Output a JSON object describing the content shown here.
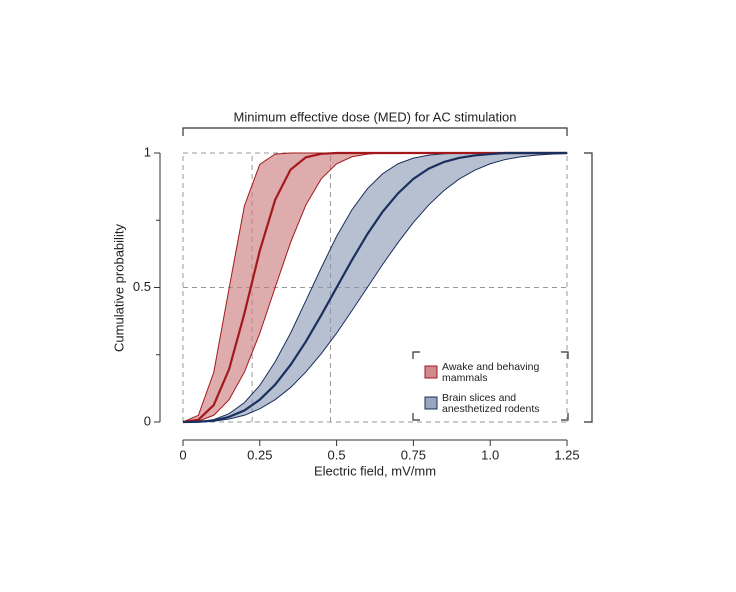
{
  "chart_data": {
    "type": "line",
    "title": "Minimum effective dose (MED) for AC stimulation",
    "x_label": "Electric field, mV/mm",
    "y_label": "Cumulative probability",
    "x": [
      0,
      0.05,
      0.1,
      0.15,
      0.2,
      0.25,
      0.3,
      0.35,
      0.4,
      0.45,
      0.5,
      0.55,
      0.6,
      0.65,
      0.7,
      0.75,
      0.8,
      0.85,
      0.9,
      0.95,
      1.0,
      1.05,
      1.1,
      1.15,
      1.2,
      1.25
    ],
    "series": [
      {
        "name": "Awake and behaving mammals",
        "color": "#a3191b",
        "band_color": "#c97577",
        "values": [
          0,
          0.008,
          0.063,
          0.196,
          0.404,
          0.637,
          0.826,
          0.938,
          0.984,
          0.997,
          1,
          1,
          1,
          1,
          1,
          1,
          1,
          1,
          1,
          1,
          1,
          1,
          1,
          1,
          1,
          1
        ],
        "upper": [
          0,
          0.025,
          0.184,
          0.497,
          0.804,
          0.958,
          0.996,
          1,
          1,
          1,
          1,
          1,
          1,
          1,
          1,
          1,
          1,
          1,
          1,
          1,
          1,
          1,
          1,
          1,
          1,
          1
        ],
        "lower": [
          0,
          0.003,
          0.025,
          0.083,
          0.186,
          0.33,
          0.5,
          0.667,
          0.807,
          0.904,
          0.96,
          0.986,
          0.996,
          1,
          1,
          1,
          1,
          1,
          1,
          1,
          1,
          1,
          1,
          1,
          1,
          1
        ]
      },
      {
        "name": "Brain slices and anesthetized rodents",
        "color": "#1a2f5c",
        "band_color": "#8696b3",
        "values": [
          0,
          0.001,
          0.005,
          0.019,
          0.043,
          0.083,
          0.139,
          0.212,
          0.299,
          0.397,
          0.5,
          0.602,
          0.698,
          0.782,
          0.85,
          0.904,
          0.942,
          0.967,
          0.982,
          0.991,
          0.996,
          1,
          1,
          1,
          1,
          1
        ],
        "upper": [
          0,
          0.001,
          0.009,
          0.031,
          0.072,
          0.136,
          0.224,
          0.33,
          0.451,
          0.573,
          0.69,
          0.789,
          0.867,
          0.923,
          0.96,
          0.981,
          0.992,
          0.997,
          1,
          1,
          1,
          1,
          1,
          1,
          1,
          1
        ],
        "lower": [
          0,
          0,
          0.003,
          0.011,
          0.025,
          0.049,
          0.083,
          0.128,
          0.186,
          0.254,
          0.33,
          0.414,
          0.5,
          0.586,
          0.667,
          0.742,
          0.807,
          0.861,
          0.904,
          0.936,
          0.96,
          0.976,
          0.986,
          0.992,
          0.996,
          0.998
        ]
      }
    ],
    "xlim": [
      0,
      1.25
    ],
    "ylim": [
      0,
      1
    ],
    "xticks": [
      0,
      0.25,
      0.5,
      0.75,
      {
        "value": 1,
        "label": "1.0"
      },
      1.25
    ],
    "yticks": [
      0,
      0.5,
      1
    ],
    "minor_yticks": [
      0.25,
      0.75
    ],
    "reference_x": [
      0,
      0.225,
      0.48,
      1.25
    ],
    "reference_y": [
      0,
      0.5,
      1
    ],
    "legend": "lower right"
  }
}
